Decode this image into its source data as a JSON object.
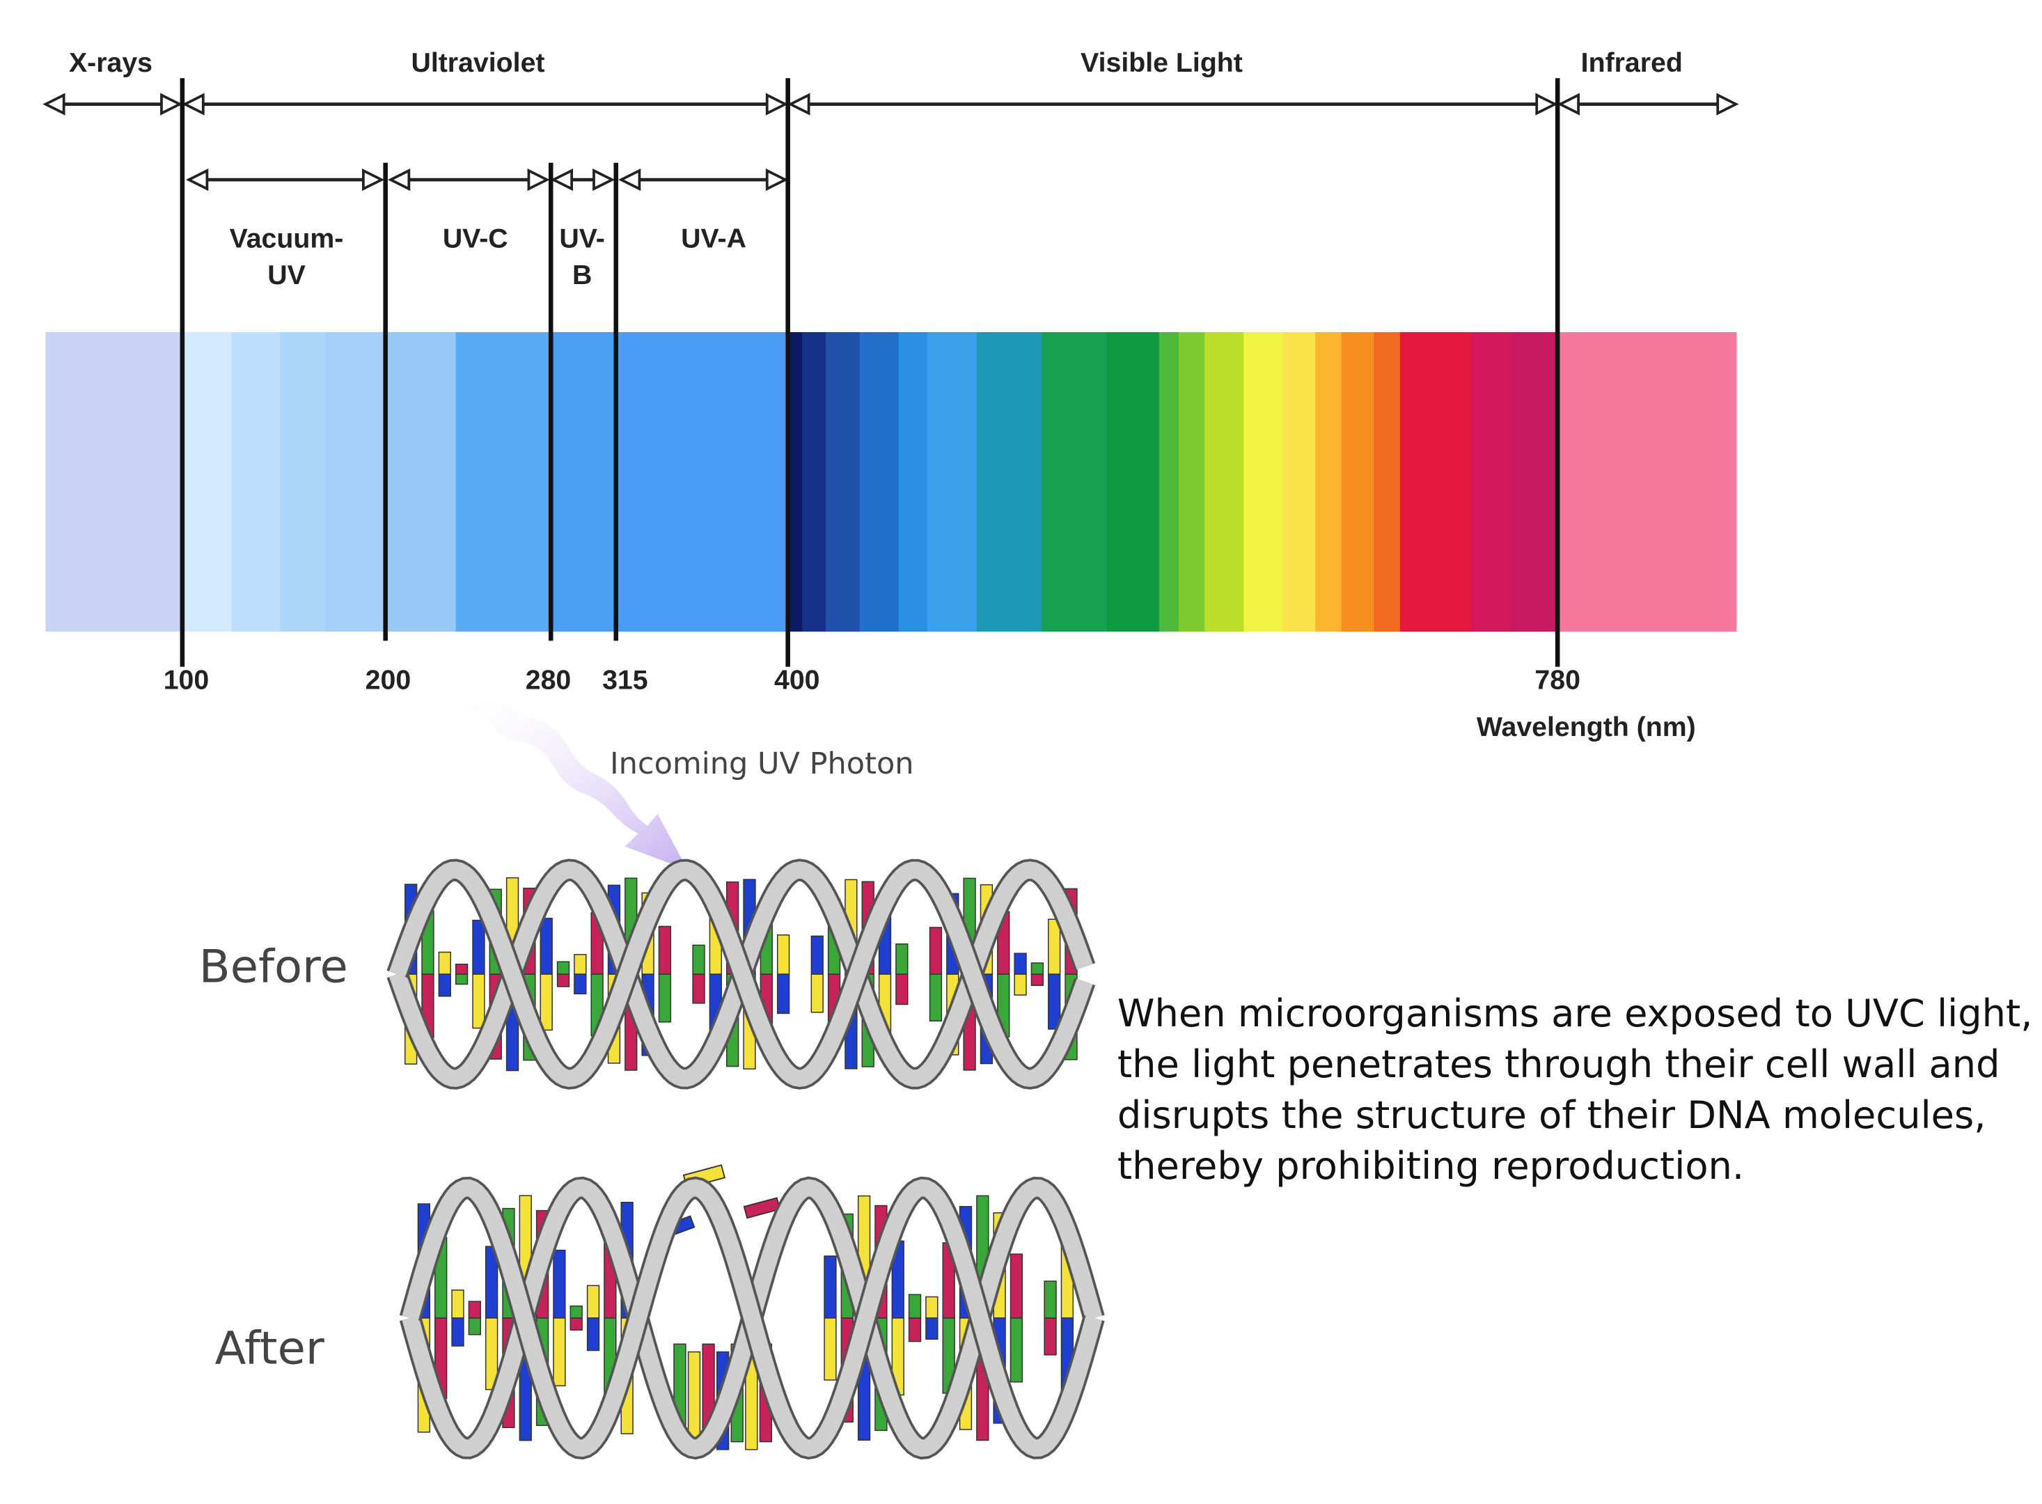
{
  "spectrum": {
    "regions": [
      "X-rays",
      "Ultraviolet",
      "Visible Light",
      "Infrared"
    ],
    "uv_bands": [
      [
        "Vacuum-",
        "UV"
      ],
      [
        "UV-C"
      ],
      [
        "UV-",
        "B"
      ],
      [
        "UV-A"
      ]
    ],
    "ticks": [
      100,
      200,
      280,
      315,
      400,
      780
    ],
    "axis_label": "Wavelength (nm)"
  },
  "dna": {
    "photon_label": "Incoming UV Photon",
    "before_label": "Before",
    "after_label": "After",
    "description": [
      "When microorganisms are exposed to UVC light,",
      "the light penetrates through their cell wall and",
      "disrupts the structure of their DNA molecules,",
      "thereby prohibiting reproduction."
    ]
  }
}
